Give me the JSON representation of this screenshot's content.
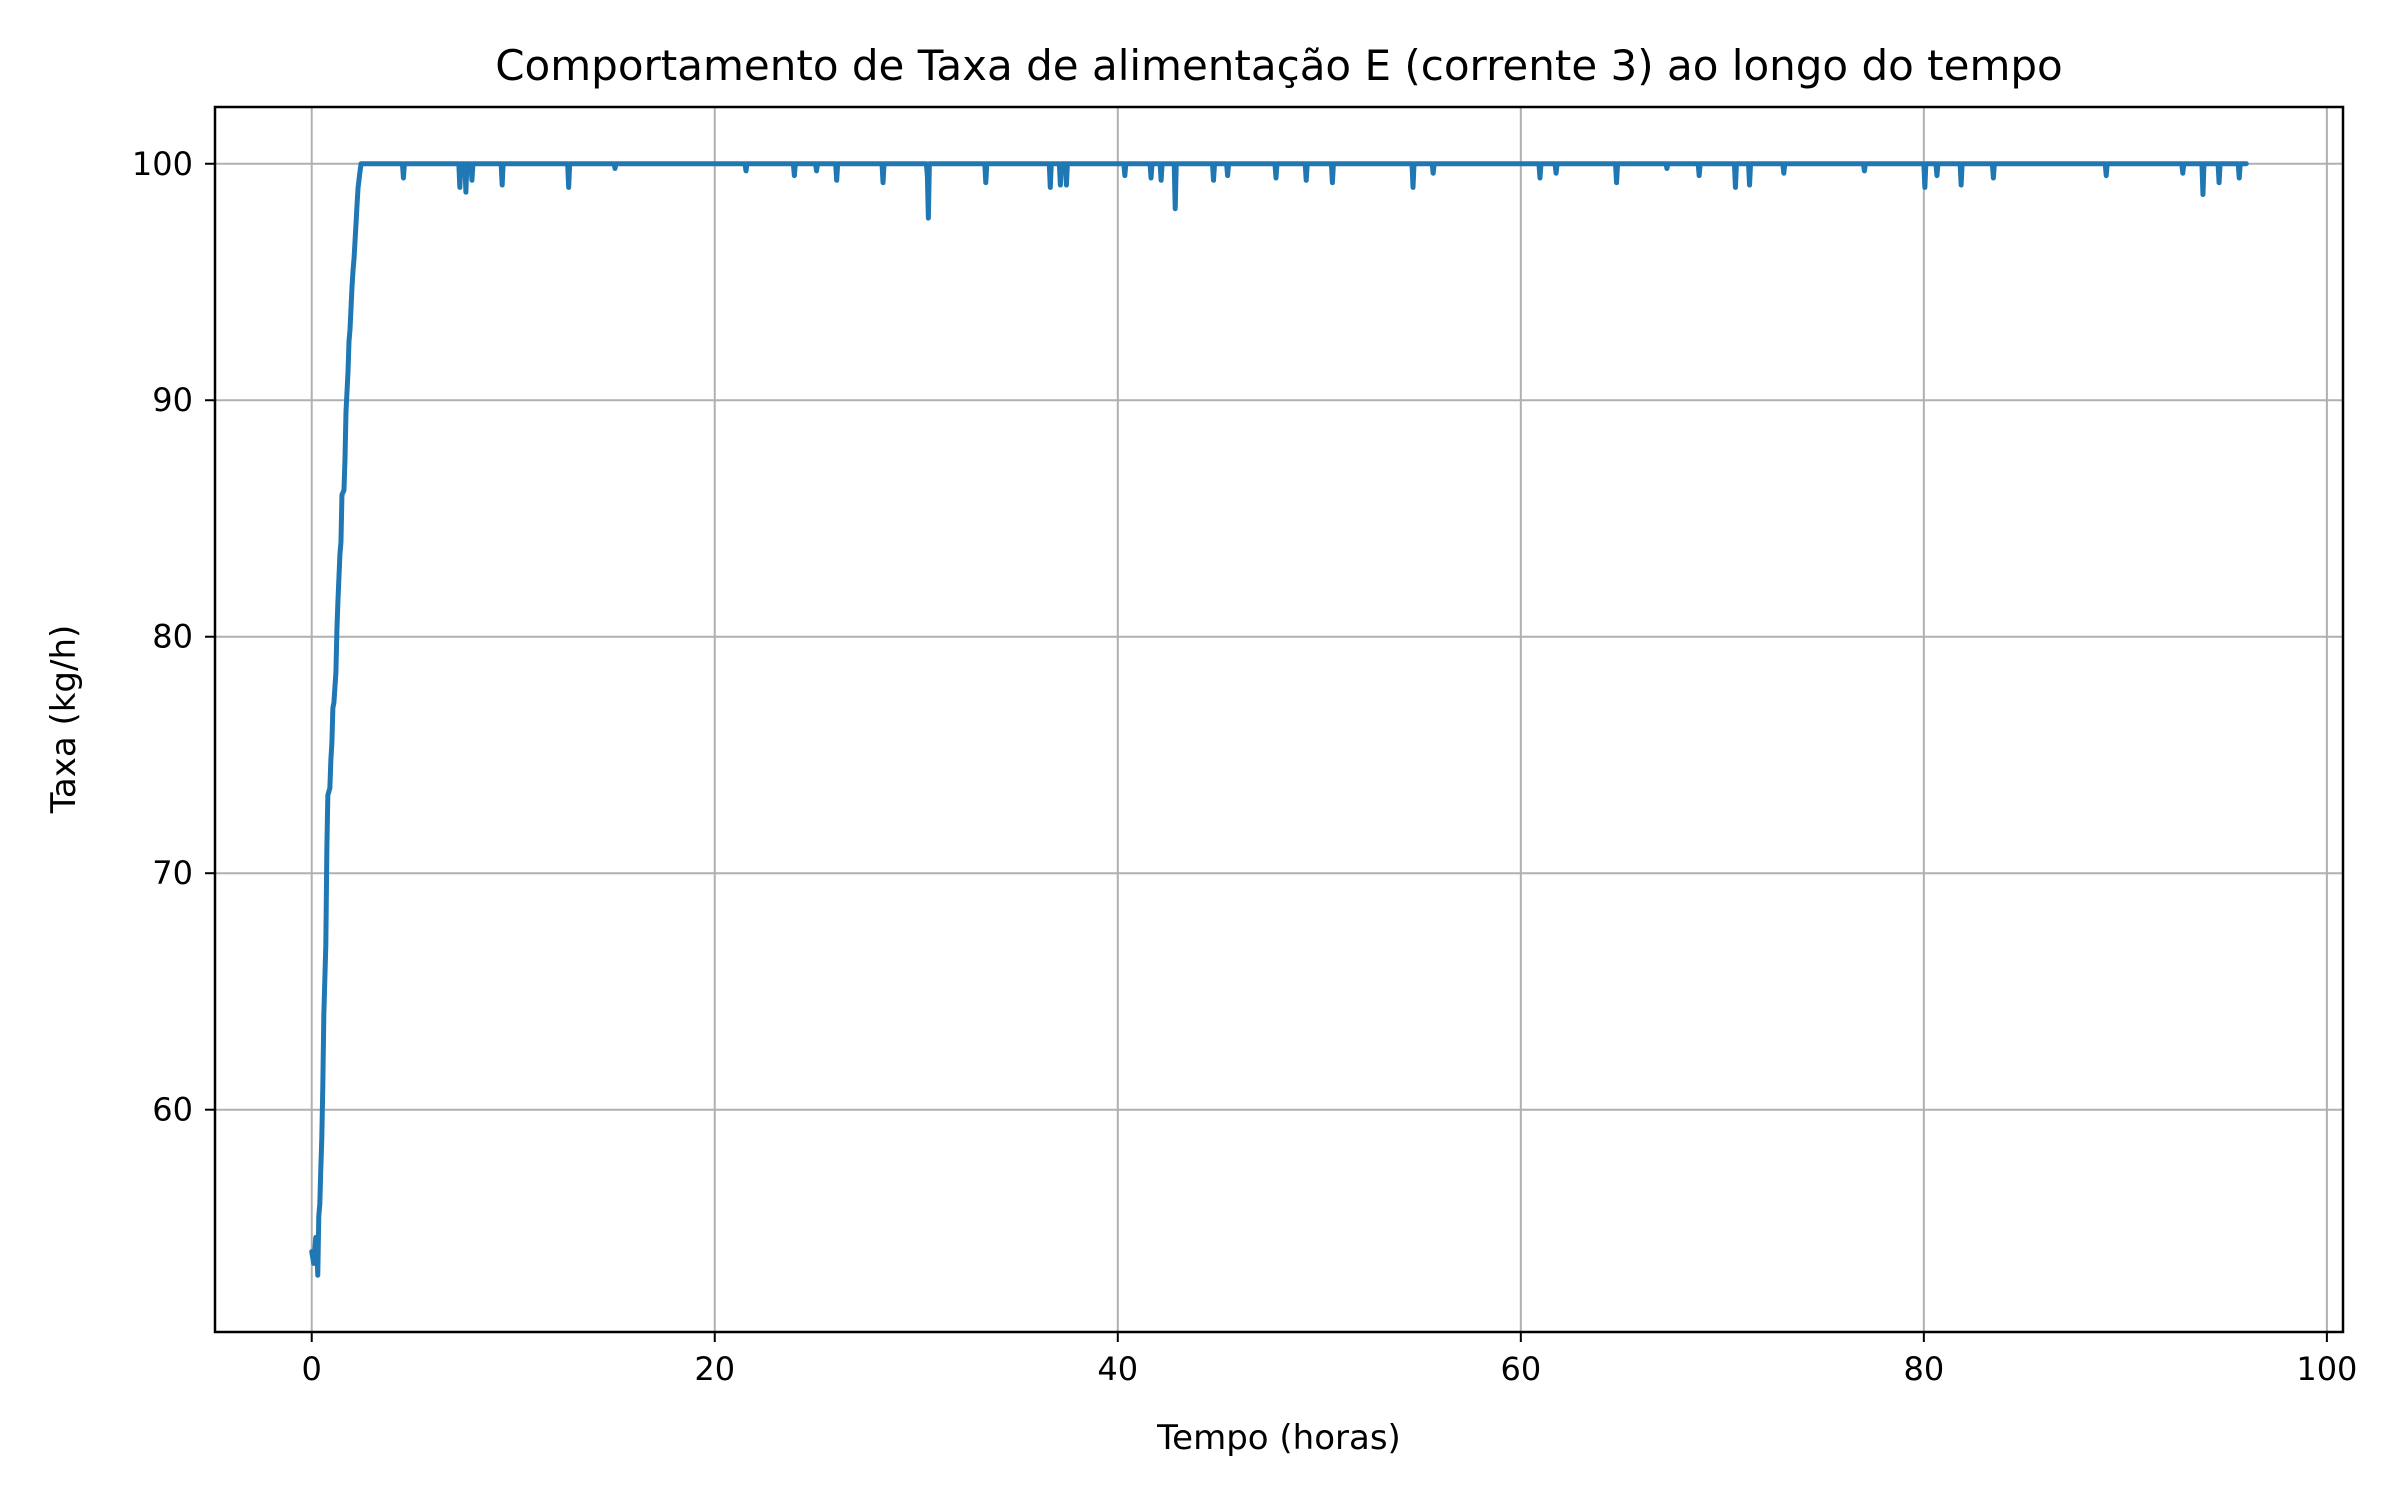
{
  "chart_data": {
    "type": "line",
    "title": "Comportamento de Taxa de alimentação E (corrente 3) ao longo do tempo",
    "xlabel": "Tempo (horas)",
    "ylabel": "Taxa (kg/h)",
    "xlim": [
      -4.8,
      100.8
    ],
    "ylim": [
      50.6,
      102.4
    ],
    "x_ticks": [
      0,
      20,
      40,
      60,
      80,
      100
    ],
    "x_tick_labels": [
      "0",
      "20",
      "40",
      "60",
      "80",
      "100"
    ],
    "y_ticks": [
      60,
      70,
      80,
      90,
      100
    ],
    "y_tick_labels": [
      "60",
      "70",
      "80",
      "90",
      "100"
    ],
    "grid": true,
    "legend": null,
    "color": "#1f77b4",
    "series": [
      {
        "x": [
          0.0,
          0.1,
          0.2,
          0.25,
          0.3,
          0.35,
          0.4,
          0.45,
          0.5,
          0.55,
          0.6,
          0.7,
          0.75,
          0.8,
          0.9,
          0.95,
          1.0,
          1.05,
          1.1,
          1.2,
          1.25,
          1.3,
          1.4,
          1.45,
          1.5,
          1.6,
          1.65,
          1.7,
          1.8,
          1.85,
          1.9,
          2.0,
          2.05,
          2.1,
          2.2,
          2.25,
          2.3,
          2.4,
          2.45,
          2.5,
          2.6,
          2.65,
          2.7,
          2.8,
          2.85,
          2.9,
          3.0,
          3.05,
          3.1,
          3.2,
          3.3,
          4.5,
          4.55,
          4.6,
          7.3,
          7.35,
          7.4,
          7.6,
          7.65,
          7.7,
          7.9,
          7.95,
          8.0,
          9.4,
          9.45,
          9.5,
          12.7,
          12.75,
          12.8,
          15.0,
          15.05,
          15.1,
          21.5,
          21.55,
          21.6,
          23.9,
          23.95,
          24.0,
          25.0,
          25.05,
          25.1,
          26.0,
          26.05,
          26.1,
          28.3,
          28.35,
          28.4,
          30.5,
          30.55,
          30.6,
          30.65,
          30.7,
          33.4,
          33.45,
          33.5,
          36.6,
          36.65,
          36.7,
          37.1,
          37.15,
          37.2,
          37.4,
          37.45,
          37.5,
          40.3,
          40.35,
          40.4,
          41.6,
          41.65,
          41.7,
          42.1,
          42.15,
          42.2,
          42.8,
          42.85,
          42.9,
          44.7,
          44.75,
          44.8,
          45.4,
          45.45,
          45.5,
          47.8,
          47.85,
          47.9,
          49.3,
          49.35,
          49.4,
          50.6,
          50.65,
          50.7,
          54.6,
          54.65,
          54.7,
          55.6,
          55.65,
          55.7,
          60.9,
          60.95,
          61.0,
          61.7,
          61.75,
          61.8,
          64.7,
          64.75,
          64.8,
          67.2,
          67.25,
          67.3,
          68.8,
          68.85,
          68.9,
          70.6,
          70.65,
          70.7,
          71.3,
          71.35,
          71.4,
          73.0,
          73.05,
          73.1,
          77.0,
          77.05,
          77.1,
          80.0,
          80.05,
          80.1,
          80.6,
          80.65,
          80.7,
          81.8,
          81.85,
          81.9,
          83.4,
          83.45,
          83.5,
          89.0,
          89.05,
          89.1,
          92.8,
          92.85,
          92.9,
          93.8,
          93.85,
          93.9,
          94.6,
          94.65,
          94.7,
          95.6,
          95.65,
          95.7,
          96.0
        ],
        "y": [
          54.0,
          53.5,
          54.6,
          54.2,
          53.0,
          55.5,
          56.0,
          57.5,
          58.8,
          61.0,
          64.0,
          67.0,
          71.0,
          73.3,
          73.6,
          74.8,
          75.5,
          77.0,
          77.2,
          78.5,
          80.3,
          81.5,
          83.5,
          84.0,
          86.0,
          86.2,
          87.5,
          89.5,
          91.2,
          92.5,
          93.0,
          94.8,
          95.5,
          96.0,
          97.5,
          98.3,
          99.0,
          99.7,
          100.0,
          100.0,
          100.0,
          100.0,
          100.0,
          100.0,
          100.0,
          100.0,
          100.0,
          100.0,
          100.0,
          100.0,
          100.0,
          100.0,
          99.4,
          100.0,
          100.0,
          99.0,
          100.0,
          100.0,
          98.8,
          100.0,
          100.0,
          99.3,
          100.0,
          100.0,
          99.1,
          100.0,
          100.0,
          99.0,
          100.0,
          100.0,
          99.8,
          100.0,
          100.0,
          99.7,
          100.0,
          100.0,
          99.5,
          100.0,
          100.0,
          99.7,
          100.0,
          100.0,
          99.3,
          100.0,
          100.0,
          99.2,
          100.0,
          100.0,
          99.5,
          97.7,
          100.0,
          100.0,
          100.0,
          99.2,
          100.0,
          100.0,
          99.0,
          100.0,
          100.0,
          99.1,
          100.0,
          100.0,
          99.1,
          100.0,
          100.0,
          99.5,
          100.0,
          100.0,
          99.4,
          100.0,
          100.0,
          99.3,
          100.0,
          100.0,
          98.1,
          100.0,
          100.0,
          99.3,
          100.0,
          100.0,
          99.5,
          100.0,
          100.0,
          99.4,
          100.0,
          100.0,
          99.3,
          100.0,
          100.0,
          99.2,
          100.0,
          100.0,
          99.0,
          100.0,
          100.0,
          99.6,
          100.0,
          100.0,
          99.4,
          100.0,
          100.0,
          99.6,
          100.0,
          100.0,
          99.2,
          100.0,
          100.0,
          99.8,
          100.0,
          100.0,
          99.5,
          100.0,
          100.0,
          99.0,
          100.0,
          100.0,
          99.1,
          100.0,
          100.0,
          99.6,
          100.0,
          100.0,
          99.7,
          100.0,
          100.0,
          99.0,
          100.0,
          100.0,
          99.5,
          100.0,
          100.0,
          99.1,
          100.0,
          100.0,
          99.4,
          100.0,
          100.0,
          99.5,
          100.0,
          100.0,
          99.6,
          100.0,
          100.0,
          98.7,
          100.0,
          100.0,
          99.2,
          100.0,
          100.0,
          99.4,
          100.0,
          100.0
        ]
      }
    ]
  }
}
